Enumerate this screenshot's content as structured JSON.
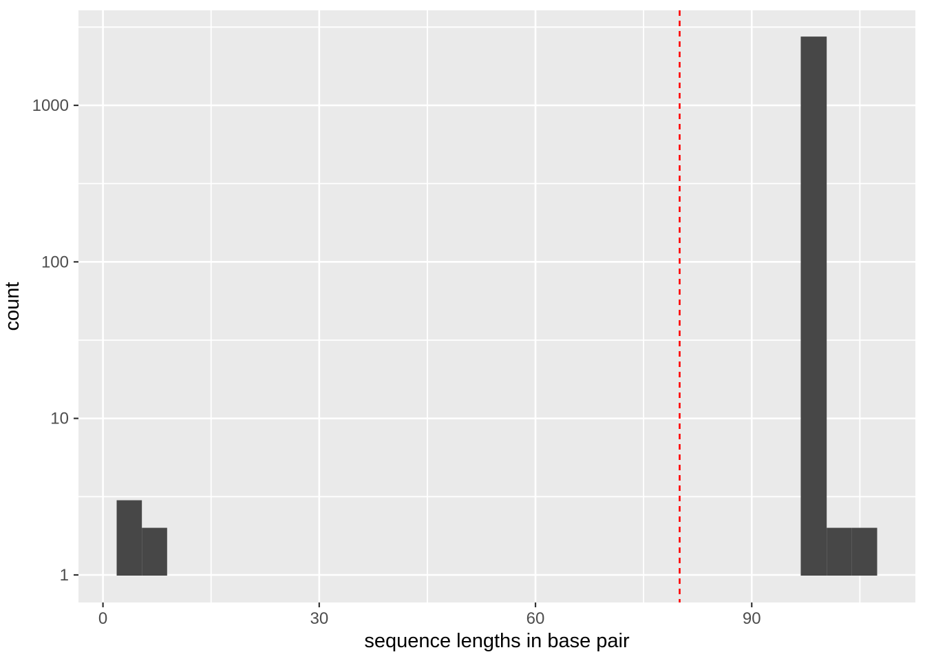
{
  "figure": {
    "background_color": "#FFFFFF",
    "panel_background_color": "#EAEAEA",
    "grid_color": "#FFFFFF",
    "bar_color": "#474747",
    "tick_label_color": "#4D4D4D",
    "axis_title_color": "#000000",
    "tick_mark_color": "#333333"
  },
  "chart_data": {
    "type": "bar",
    "subtype": "histogram",
    "title": "",
    "xlabel": "sequence lengths in base pair",
    "ylabel": "count",
    "y_scale": "log10",
    "grid": "on",
    "legend": "none",
    "x_ticks": [
      0,
      30,
      60,
      90
    ],
    "x_minor_ticks": [
      15,
      45,
      75,
      105
    ],
    "y_ticks": [
      1,
      10,
      100,
      1000
    ],
    "y_minor_ticks": [
      3.162,
      31.623,
      316.228,
      3162.278
    ],
    "x_domain": [
      -3.4,
      112.7
    ],
    "y_log10_domain": [
      -0.176,
      3.607
    ],
    "bar_baseline_count": 1,
    "bars": [
      {
        "x0": 1.9,
        "x1": 5.4,
        "count": 3
      },
      {
        "x0": 5.4,
        "x1": 8.9,
        "count": 2
      },
      {
        "x0": 96.8,
        "x1": 100.4,
        "count": 2750
      },
      {
        "x0": 100.4,
        "x1": 103.9,
        "count": 2
      },
      {
        "x0": 103.9,
        "x1": 107.4,
        "count": 2
      }
    ],
    "vline": {
      "x": 80,
      "color": "#FF0000",
      "style": "dashed"
    }
  }
}
